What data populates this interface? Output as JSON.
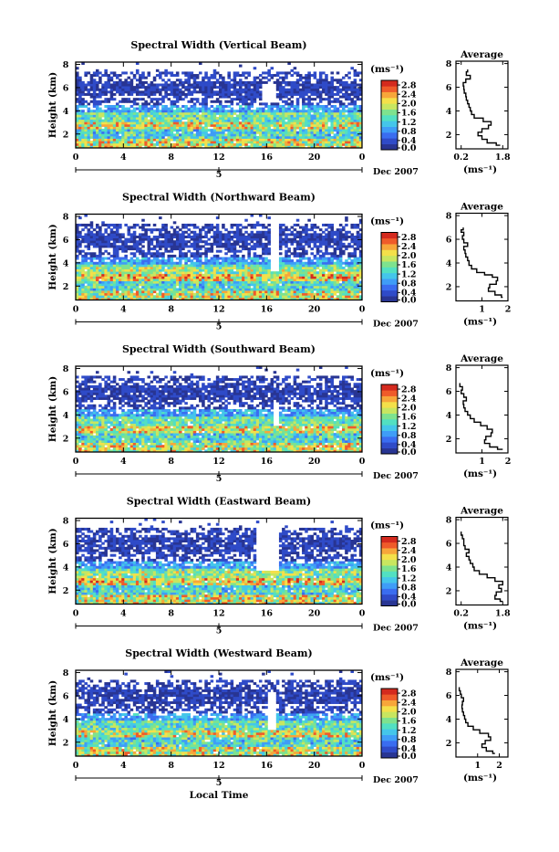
{
  "chart_data": [
    {
      "type": "heatmap",
      "title": "Spectral Width (Vertical Beam)",
      "ylabel": "Height (km)",
      "y_ticks": [
        "2",
        "4",
        "6",
        "8"
      ],
      "ylim": [
        0.8,
        8.2
      ],
      "x_ticks": [
        "0",
        "4",
        "8",
        "12",
        "16",
        "20",
        "0"
      ],
      "xlim": [
        0,
        24
      ],
      "date_tick": "5",
      "date_label": "Dec 2007",
      "xlabel": "",
      "colorbar": {
        "unit": "(ms⁻¹)",
        "ticks": [
          "0.0",
          "0.4",
          "0.8",
          "1.2",
          "1.6",
          "2.0",
          "2.4",
          "2.8"
        ],
        "range": [
          0.0,
          3.0
        ]
      },
      "data_gap": {
        "time_start": 15.6,
        "time_end": 16.8,
        "height_min": 4.8,
        "height_max": 6.4
      },
      "average_profile": {
        "title": "Average",
        "xlabel": "(ms⁻¹)",
        "x_ticks": [
          "0.2",
          "1.8"
        ],
        "xlim": [
          0.0,
          2.0
        ],
        "ylim": [
          0.8,
          8.2
        ],
        "y_ticks": [
          "2",
          "4",
          "6",
          "8"
        ],
        "points": [
          [
            1.7,
            1.1
          ],
          [
            1.55,
            1.3
          ],
          [
            1.2,
            1.6
          ],
          [
            1.0,
            1.9
          ],
          [
            0.85,
            2.2
          ],
          [
            1.0,
            2.5
          ],
          [
            1.25,
            2.8
          ],
          [
            1.35,
            3.1
          ],
          [
            1.05,
            3.4
          ],
          [
            0.7,
            3.7
          ],
          [
            0.6,
            4.0
          ],
          [
            0.55,
            4.3
          ],
          [
            0.5,
            4.6
          ],
          [
            0.45,
            4.9
          ],
          [
            0.4,
            5.2
          ],
          [
            0.38,
            5.5
          ],
          [
            0.32,
            5.8
          ],
          [
            0.3,
            6.1
          ],
          [
            0.28,
            6.4
          ],
          [
            0.38,
            6.7
          ],
          [
            0.55,
            7.0
          ],
          [
            0.4,
            7.3
          ],
          [
            0.45,
            7.5
          ]
        ]
      }
    },
    {
      "type": "heatmap",
      "title": "Spectral Width (Northward Beam)",
      "ylabel": "Height (km)",
      "y_ticks": [
        "2",
        "4",
        "6",
        "8"
      ],
      "ylim": [
        0.8,
        8.2
      ],
      "x_ticks": [
        "0",
        "4",
        "8",
        "12",
        "16",
        "20",
        "0"
      ],
      "xlim": [
        0,
        24
      ],
      "date_tick": "5",
      "date_label": "Dec 2007",
      "xlabel": "",
      "colorbar": {
        "unit": "(ms⁻¹)",
        "ticks": [
          "0.0",
          "0.4",
          "0.8",
          "1.2",
          "1.6",
          "2.0",
          "2.4",
          "2.8"
        ],
        "range": [
          0.0,
          3.0
        ]
      },
      "data_gap": {
        "time_start": 16.4,
        "time_end": 17.0,
        "height_min": 3.2,
        "height_max": 7.4
      },
      "average_profile": {
        "title": "Average",
        "xlabel": "(ms⁻¹)",
        "x_ticks": [
          "1",
          "2"
        ],
        "xlim": [
          0.0,
          2.0
        ],
        "ylim": [
          0.8,
          8.2
        ],
        "y_ticks": [
          "2",
          "4",
          "6",
          "8"
        ],
        "points": [
          [
            1.8,
            1.1
          ],
          [
            1.75,
            1.3
          ],
          [
            1.5,
            1.6
          ],
          [
            1.25,
            1.9
          ],
          [
            1.3,
            2.2
          ],
          [
            1.55,
            2.5
          ],
          [
            1.6,
            2.8
          ],
          [
            1.4,
            3.0
          ],
          [
            1.1,
            3.2
          ],
          [
            0.8,
            3.5
          ],
          [
            0.6,
            3.8
          ],
          [
            0.5,
            4.2
          ],
          [
            0.45,
            4.5
          ],
          [
            0.38,
            4.8
          ],
          [
            0.35,
            5.1
          ],
          [
            0.3,
            5.4
          ],
          [
            0.45,
            5.7
          ],
          [
            0.3,
            6.0
          ],
          [
            0.25,
            6.3
          ],
          [
            0.3,
            6.6
          ],
          [
            0.2,
            6.8
          ],
          [
            0.28,
            7.0
          ]
        ]
      }
    },
    {
      "type": "heatmap",
      "title": "Spectral Width (Southward Beam)",
      "ylabel": "Height (km)",
      "y_ticks": [
        "2",
        "4",
        "6",
        "8"
      ],
      "ylim": [
        0.8,
        8.2
      ],
      "x_ticks": [
        "0",
        "4",
        "8",
        "12",
        "16",
        "20",
        "0"
      ],
      "xlim": [
        0,
        24
      ],
      "date_tick": "5",
      "date_label": "Dec 2007",
      "xlabel": "",
      "colorbar": {
        "unit": "(ms⁻¹)",
        "ticks": [
          "0.0",
          "0.4",
          "0.8",
          "1.2",
          "1.6",
          "2.0",
          "2.4",
          "2.8"
        ],
        "range": [
          0.0,
          3.0
        ]
      },
      "data_gap": {
        "time_start": 16.6,
        "time_end": 17.1,
        "height_min": 3.0,
        "height_max": 5.2
      },
      "average_profile": {
        "title": "Average",
        "xlabel": "(ms⁻¹)",
        "x_ticks": [
          "1",
          "2"
        ],
        "xlim": [
          0.0,
          2.0
        ],
        "ylim": [
          0.8,
          8.2
        ],
        "y_ticks": [
          "2",
          "4",
          "6",
          "8"
        ],
        "points": [
          [
            1.8,
            1.1
          ],
          [
            1.6,
            1.3
          ],
          [
            1.3,
            1.6
          ],
          [
            1.1,
            1.9
          ],
          [
            1.15,
            2.2
          ],
          [
            1.35,
            2.5
          ],
          [
            1.4,
            2.8
          ],
          [
            1.2,
            3.1
          ],
          [
            0.95,
            3.4
          ],
          [
            0.7,
            3.7
          ],
          [
            0.55,
            4.0
          ],
          [
            0.45,
            4.3
          ],
          [
            0.35,
            4.6
          ],
          [
            0.3,
            4.9
          ],
          [
            0.28,
            5.2
          ],
          [
            0.4,
            5.5
          ],
          [
            0.3,
            5.8
          ],
          [
            0.2,
            6.1
          ],
          [
            0.25,
            6.4
          ],
          [
            0.15,
            6.7
          ]
        ]
      }
    },
    {
      "type": "heatmap",
      "title": "Spectral Width (Eastward Beam)",
      "ylabel": "Height (km)",
      "y_ticks": [
        "2",
        "4",
        "6",
        "8"
      ],
      "ylim": [
        0.8,
        8.2
      ],
      "x_ticks": [
        "0",
        "4",
        "8",
        "12",
        "16",
        "20",
        "0"
      ],
      "xlim": [
        0,
        24
      ],
      "date_tick": "5",
      "date_label": "Dec 2007",
      "xlabel": "",
      "colorbar": {
        "unit": "(ms⁻¹)",
        "ticks": [
          "0.0",
          "0.4",
          "0.8",
          "1.2",
          "1.6",
          "2.0",
          "2.4",
          "2.8"
        ],
        "range": [
          0.0,
          3.0
        ]
      },
      "data_gap": {
        "time_start": 15.2,
        "time_end": 17.0,
        "height_min": 3.6,
        "height_max": 7.6
      },
      "average_profile": {
        "title": "Average",
        "xlabel": "(ms⁻¹)",
        "x_ticks": [
          "0.2",
          "1.8"
        ],
        "xlim": [
          0.0,
          2.0
        ],
        "ylim": [
          0.8,
          8.2
        ],
        "y_ticks": [
          "2",
          "4",
          "6",
          "8"
        ],
        "points": [
          [
            1.8,
            1.1
          ],
          [
            1.7,
            1.3
          ],
          [
            1.5,
            1.6
          ],
          [
            1.55,
            1.9
          ],
          [
            1.75,
            2.2
          ],
          [
            1.65,
            2.5
          ],
          [
            1.8,
            2.8
          ],
          [
            1.5,
            3.1
          ],
          [
            1.2,
            3.4
          ],
          [
            0.9,
            3.7
          ],
          [
            0.7,
            4.0
          ],
          [
            0.65,
            4.3
          ],
          [
            0.55,
            4.6
          ],
          [
            0.5,
            4.9
          ],
          [
            0.4,
            5.2
          ],
          [
            0.5,
            5.5
          ],
          [
            0.35,
            5.8
          ],
          [
            0.3,
            6.1
          ],
          [
            0.3,
            6.4
          ],
          [
            0.25,
            6.7
          ],
          [
            0.2,
            7.0
          ]
        ]
      }
    },
    {
      "type": "heatmap",
      "title": "Spectral Width (Westward Beam)",
      "ylabel": "Height (km)",
      "y_ticks": [
        "2",
        "4",
        "6",
        "8"
      ],
      "ylim": [
        0.8,
        8.2
      ],
      "x_ticks": [
        "0",
        "4",
        "8",
        "12",
        "16",
        "20",
        "0"
      ],
      "xlim": [
        0,
        24
      ],
      "date_tick": "5",
      "date_label": "Dec 2007",
      "xlabel": "Local Time",
      "colorbar": {
        "unit": "(ms⁻¹)",
        "ticks": [
          "0.0",
          "0.4",
          "0.8",
          "1.2",
          "1.6",
          "2.0",
          "2.4",
          "2.8"
        ],
        "range": [
          0.0,
          3.0
        ]
      },
      "data_gap": {
        "time_start": 16.2,
        "time_end": 16.7,
        "height_min": 3.0,
        "height_max": 6.4
      },
      "average_profile": {
        "title": "Average",
        "xlabel": "(ms⁻¹)",
        "x_ticks": [
          "1",
          "2"
        ],
        "xlim": [
          0.0,
          2.4
        ],
        "ylim": [
          0.8,
          8.2
        ],
        "y_ticks": [
          "2",
          "4",
          "6",
          "8"
        ],
        "points": [
          [
            1.8,
            1.1
          ],
          [
            1.7,
            1.3
          ],
          [
            1.4,
            1.6
          ],
          [
            1.2,
            1.9
          ],
          [
            1.35,
            2.2
          ],
          [
            1.6,
            2.5
          ],
          [
            1.5,
            2.8
          ],
          [
            1.1,
            3.1
          ],
          [
            0.8,
            3.4
          ],
          [
            0.55,
            3.7
          ],
          [
            0.45,
            4.0
          ],
          [
            0.4,
            4.3
          ],
          [
            0.35,
            4.6
          ],
          [
            0.3,
            4.9
          ],
          [
            0.28,
            5.2
          ],
          [
            0.3,
            5.5
          ],
          [
            0.35,
            5.8
          ],
          [
            0.25,
            6.1
          ],
          [
            0.2,
            6.4
          ],
          [
            0.15,
            6.7
          ]
        ]
      }
    }
  ],
  "colors": {
    "palette": [
      "#283593",
      "#2f4bc8",
      "#3a6df0",
      "#3f9df7",
      "#44c6ea",
      "#52e0c2",
      "#7ee28e",
      "#c8e660",
      "#f4e04a",
      "#f7a63a",
      "#ef5b2a",
      "#d42a1e"
    ]
  }
}
